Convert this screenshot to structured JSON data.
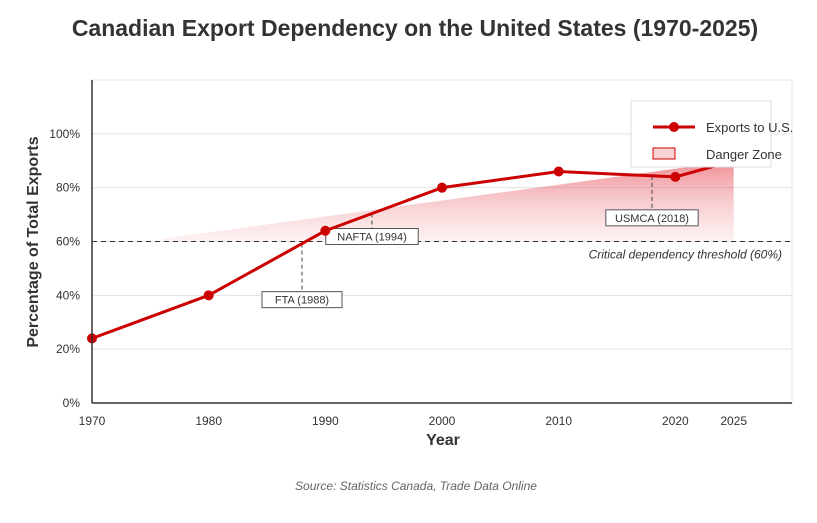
{
  "chart_data": {
    "type": "line",
    "title": "Canadian Export Dependency on the United States (1970-2025)",
    "xlabel": "Year",
    "ylabel": "Percentage of Total Exports",
    "x_ticks": [
      "1970",
      "1980",
      "1990",
      "2000",
      "2010",
      "2020",
      "2025"
    ],
    "y_ticks": [
      "0%",
      "20%",
      "40%",
      "60%",
      "80%",
      "100%"
    ],
    "ylim": [
      0,
      120
    ],
    "series": [
      {
        "name": "Exports to U.S.",
        "color": "#cc0000",
        "x": [
          1970,
          1980,
          1990,
          2000,
          2010,
          2020,
          2025
        ],
        "values": [
          24,
          40,
          64,
          80,
          86,
          84,
          90
        ]
      }
    ],
    "danger_zone": {
      "label": "Danger Zone",
      "color": "#f8c8cc",
      "x_start": 1976,
      "x_end": 2025,
      "upper_start": 61,
      "upper_end": 90
    },
    "threshold": {
      "value": 60,
      "label": "Critical dependency threshold (60%)"
    },
    "annotations": [
      {
        "label": "FTA (1988)",
        "x": 1988
      },
      {
        "label": "NAFTA (1994)",
        "x": 1994
      },
      {
        "label": "USMCA (2018)",
        "x": 2018
      }
    ],
    "legend_position": "top-right",
    "grid": true,
    "source": "Source: Statistics Canada, Trade Data Online"
  }
}
